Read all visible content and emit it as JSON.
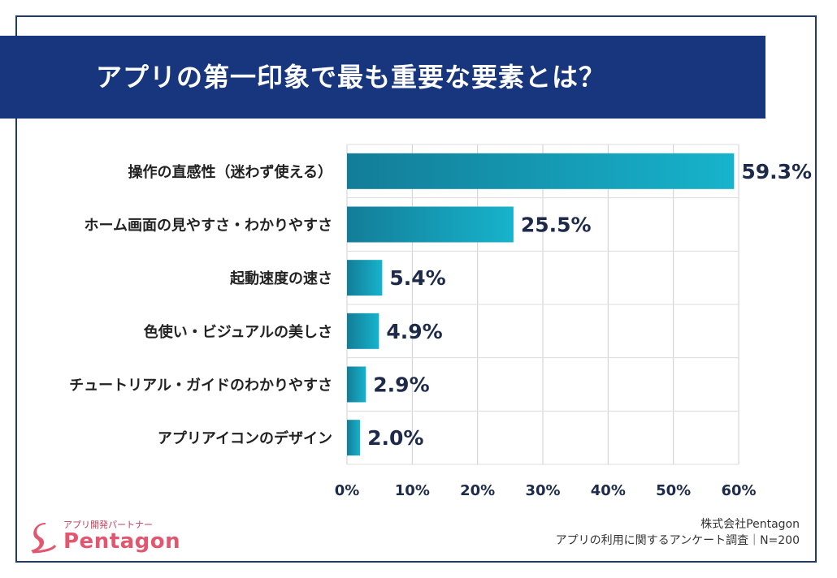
{
  "banner": {
    "title": "アプリの第一印象で最も重要な要素とは？"
  },
  "chart_data": {
    "type": "bar",
    "orientation": "horizontal",
    "title": "アプリの第一印象で最も重要な要素とは？",
    "categories": [
      "操作の直感性（迷わず使える）",
      "ホーム画面の見やすさ・わかりやすさ",
      "起動速度の速さ",
      "色使い・ビジュアルの美しさ",
      "チュートリアル・ガイドのわかりやすさ",
      "アプリアイコンのデザイン"
    ],
    "values": [
      59.3,
      25.5,
      5.4,
      4.9,
      2.9,
      2.0
    ],
    "value_labels": [
      "59.3%",
      "25.5%",
      "5.4%",
      "4.9%",
      "2.9%",
      "2.0%"
    ],
    "xlim": [
      0,
      60
    ],
    "xticks": [
      0,
      10,
      20,
      30,
      40,
      50,
      60
    ],
    "xtick_labels": [
      "0%",
      "10%",
      "20%",
      "30%",
      "40%",
      "50%",
      "60%"
    ],
    "xlabel": "",
    "ylabel": "",
    "grid": true,
    "colors": {
      "bar_start": "#137d98",
      "bar_end": "#17b3cc"
    }
  },
  "logo": {
    "tagline": "アプリ開発パートナー",
    "name": "Pentagon"
  },
  "footer": {
    "company": "株式会社Pentagon",
    "source": "アプリの利用に関するアンケート調査｜N=200"
  }
}
